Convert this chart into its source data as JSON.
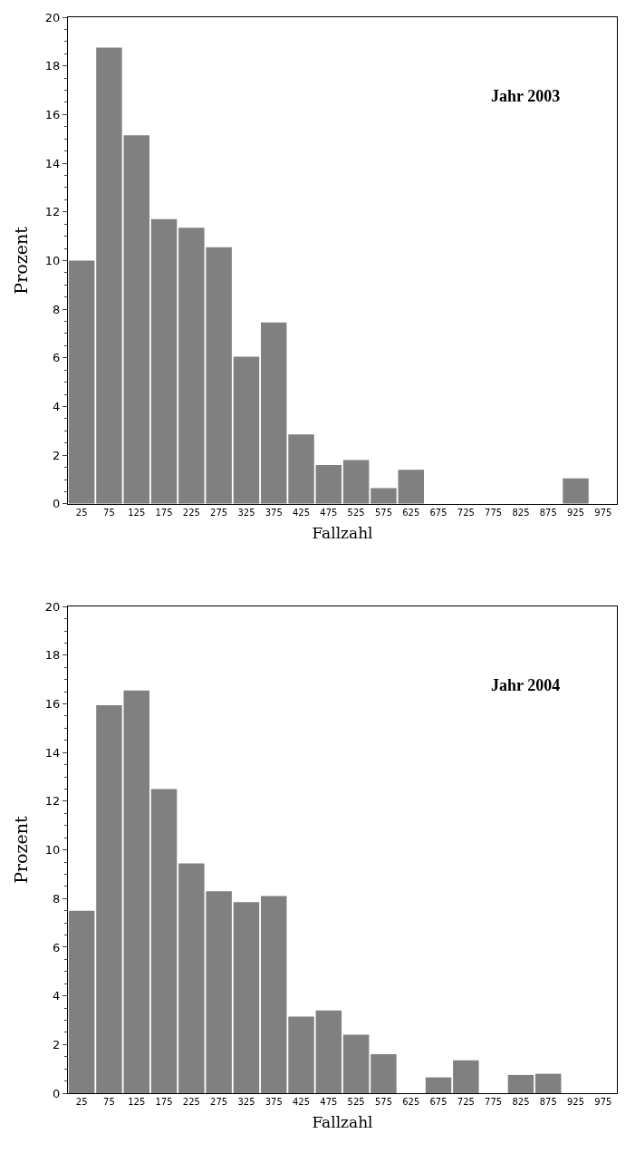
{
  "chart_data": [
    {
      "type": "bar",
      "annotations": [
        "Jahr 2003"
      ],
      "xlabel": "Fallzahl",
      "ylabel": "Prozent",
      "categories": [
        "25",
        "75",
        "125",
        "175",
        "225",
        "275",
        "325",
        "375",
        "425",
        "475",
        "525",
        "575",
        "625",
        "675",
        "725",
        "775",
        "825",
        "875",
        "925",
        "975"
      ],
      "values": [
        10.0,
        18.75,
        15.15,
        11.7,
        11.35,
        10.55,
        6.05,
        7.45,
        2.85,
        1.6,
        1.8,
        0.65,
        1.4,
        0,
        0,
        0,
        0,
        0,
        1.05,
        0
      ],
      "color": "#808080",
      "ylim": [
        0,
        20
      ],
      "yticks": [
        0,
        2,
        4,
        6,
        8,
        10,
        12,
        14,
        16,
        18,
        20
      ],
      "legend": false
    },
    {
      "type": "bar",
      "annotations": [
        "Jahr 2004"
      ],
      "xlabel": "Fallzahl",
      "ylabel": "Prozent",
      "categories": [
        "25",
        "75",
        "125",
        "175",
        "225",
        "275",
        "325",
        "375",
        "425",
        "475",
        "525",
        "575",
        "625",
        "675",
        "725",
        "775",
        "825",
        "875",
        "925",
        "975"
      ],
      "values": [
        7.5,
        15.95,
        16.55,
        12.5,
        9.45,
        8.3,
        7.85,
        8.1,
        3.15,
        3.4,
        2.4,
        1.6,
        0,
        0.65,
        1.35,
        0,
        0.75,
        0.8,
        0,
        0
      ],
      "color": "#808080",
      "ylim": [
        0,
        20
      ],
      "yticks": [
        0,
        2,
        4,
        6,
        8,
        10,
        12,
        14,
        16,
        18,
        20
      ],
      "legend": false
    }
  ]
}
